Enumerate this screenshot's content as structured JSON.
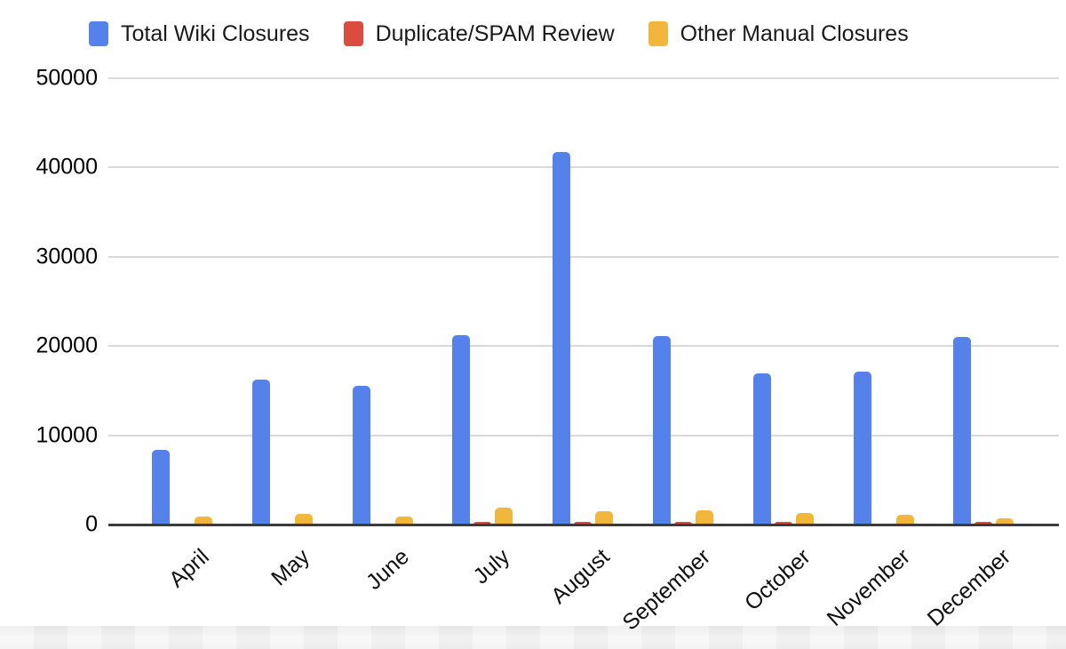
{
  "legend": {
    "position": "top",
    "items": [
      {
        "key": "total-wiki-closures",
        "label": "Total Wiki Closures",
        "color": "#5582EA"
      },
      {
        "key": "duplicate-spam-review",
        "label": "Duplicate/SPAM Review",
        "color": "#DB4B3F"
      },
      {
        "key": "other-manual-closures",
        "label": "Other Manual Closures",
        "color": "#F2B63C"
      }
    ]
  },
  "chart_data": {
    "type": "bar",
    "title": "",
    "xlabel": "",
    "ylabel": "",
    "categories": [
      "April",
      "May",
      "June",
      "July",
      "August",
      "September",
      "October",
      "November",
      "December"
    ],
    "series": [
      {
        "name": "Total Wiki Closures",
        "color": "#5582EA",
        "values": [
          8400,
          16200,
          15500,
          21200,
          41700,
          21100,
          16900,
          17100,
          21000
        ]
      },
      {
        "name": "Duplicate/SPAM Review",
        "color": "#DB4B3F",
        "values": [
          0,
          0,
          0,
          300,
          300,
          300,
          300,
          0,
          300
        ]
      },
      {
        "name": "Other Manual Closures",
        "color": "#F2B63C",
        "values": [
          900,
          1150,
          900,
          1900,
          1500,
          1550,
          1300,
          1100,
          700
        ]
      }
    ],
    "ylim": [
      0,
      50000
    ],
    "yticks": [
      0,
      10000,
      20000,
      30000,
      40000,
      50000
    ],
    "grid": true,
    "legend_position": "top",
    "gridline_color": "#d9d9d9",
    "baseline_color": "#3b3b3b"
  }
}
